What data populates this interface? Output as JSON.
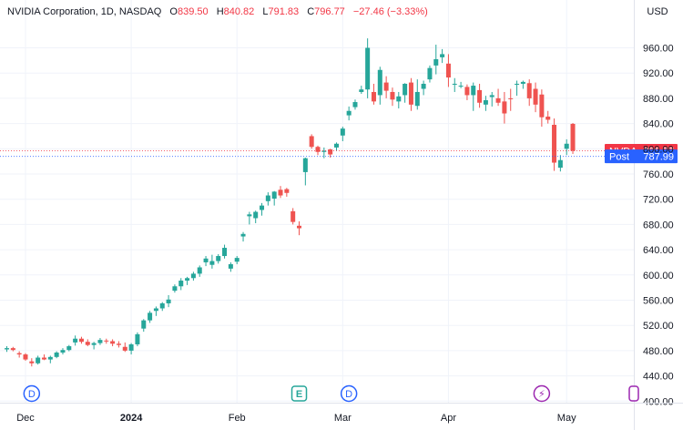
{
  "header": {
    "symbol": "NVIDIA Corporation, 1D, NASDAQ",
    "open_label": "O",
    "open": "839.50",
    "high_label": "H",
    "high": "840.82",
    "low_label": "L",
    "low": "791.83",
    "close_label": "C",
    "close": "796.77",
    "change": "−27.46 (−3.33%)"
  },
  "currency": "USD",
  "price_tags": [
    {
      "label": "NVDA",
      "value": "796.77",
      "price": 796.77,
      "color": "#f23645"
    },
    {
      "label": "Post",
      "value": "787.99",
      "price": 787.99,
      "color": "#2962ff"
    }
  ],
  "event_markers": [
    {
      "text": "D",
      "type": "dividend",
      "index": 4
    },
    {
      "text": "E",
      "type": "earnings",
      "index": 47
    },
    {
      "text": "D",
      "type": "dividend",
      "index": 55
    },
    {
      "text": "⚡",
      "type": "split",
      "index": 86
    }
  ],
  "colors": {
    "up": "#26a69a",
    "down": "#ef5350",
    "grid": "#f0f3fa",
    "axis_text": "#131722"
  },
  "chart_data": {
    "type": "candlestick",
    "title": "NVIDIA Corporation, 1D, NASDAQ",
    "ylim": [
      400,
      980
    ],
    "y_ticks": [
      400,
      440,
      480,
      520,
      560,
      600,
      640,
      680,
      720,
      760,
      800,
      840,
      880,
      920,
      960
    ],
    "y_tick_labels": [
      "400.00",
      "440.00",
      "480.00",
      "520.00",
      "560.00",
      "600.00",
      "640.00",
      "680.00",
      "720.00",
      "760.00",
      "800.00",
      "840.00",
      "880.00",
      "920.00",
      "960.00"
    ],
    "x_labels": [
      {
        "label": "Dec",
        "index": 3
      },
      {
        "label": "2024",
        "index": 20
      },
      {
        "label": "Feb",
        "index": 37
      },
      {
        "label": "Mar",
        "index": 54
      },
      {
        "label": "Apr",
        "index": 71
      },
      {
        "label": "May",
        "index": 90
      }
    ],
    "ohlc": [
      [
        482,
        487,
        478,
        484
      ],
      [
        484,
        486,
        479,
        481
      ],
      [
        476,
        479,
        469,
        474
      ],
      [
        474,
        476,
        464,
        466
      ],
      [
        463,
        468,
        455,
        460
      ],
      [
        460,
        472,
        458,
        469
      ],
      [
        469,
        474,
        465,
        466
      ],
      [
        466,
        472,
        460,
        470
      ],
      [
        470,
        479,
        468,
        477
      ],
      [
        477,
        484,
        474,
        481
      ],
      [
        481,
        489,
        479,
        487
      ],
      [
        493,
        504,
        488,
        499
      ],
      [
        499,
        502,
        491,
        494
      ],
      [
        494,
        498,
        487,
        489
      ],
      [
        489,
        494,
        482,
        492
      ],
      [
        492,
        500,
        489,
        497
      ],
      [
        496,
        499,
        491,
        495
      ],
      [
        495,
        498,
        487,
        491
      ],
      [
        491,
        495,
        485,
        489
      ],
      [
        486,
        493,
        478,
        480
      ],
      [
        480,
        492,
        474,
        490
      ],
      [
        490,
        509,
        487,
        506
      ],
      [
        515,
        530,
        510,
        528
      ],
      [
        528,
        543,
        524,
        540
      ],
      [
        543,
        550,
        535,
        547
      ],
      [
        547,
        557,
        543,
        555
      ],
      [
        555,
        568,
        549,
        561
      ],
      [
        575,
        585,
        572,
        582
      ],
      [
        582,
        595,
        576,
        591
      ],
      [
        591,
        597,
        584,
        595
      ],
      [
        595,
        605,
        591,
        602
      ],
      [
        602,
        615,
        597,
        612
      ],
      [
        620,
        630,
        614,
        626
      ],
      [
        616,
        632,
        610,
        622
      ],
      [
        622,
        633,
        618,
        630
      ],
      [
        630,
        648,
        626,
        643
      ],
      [
        610,
        620,
        605,
        617
      ],
      [
        621,
        630,
        617,
        627
      ],
      [
        661,
        668,
        653,
        665
      ],
      [
        693,
        700,
        680,
        696
      ],
      [
        690,
        702,
        682,
        700
      ],
      [
        703,
        714,
        694,
        710
      ],
      [
        717,
        731,
        710,
        726
      ],
      [
        721,
        733,
        710,
        732
      ],
      [
        735,
        741,
        722,
        726
      ],
      [
        736,
        738,
        724,
        730
      ],
      [
        701,
        706,
        680,
        684
      ],
      [
        678,
        685,
        663,
        674
      ],
      [
        763,
        786,
        742,
        785
      ],
      [
        820,
        823,
        800,
        803
      ],
      [
        803,
        805,
        790,
        795
      ],
      [
        795,
        802,
        785,
        797
      ],
      [
        799,
        800,
        786,
        791
      ],
      [
        802,
        810,
        797,
        808
      ],
      [
        821,
        835,
        812,
        832
      ],
      [
        853,
        867,
        845,
        860
      ],
      [
        866,
        878,
        862,
        874
      ],
      [
        890,
        900,
        887,
        894
      ],
      [
        894,
        975,
        880,
        960
      ],
      [
        890,
        903,
        870,
        875
      ],
      [
        885,
        930,
        870,
        925
      ],
      [
        905,
        915,
        880,
        892
      ],
      [
        890,
        897,
        868,
        878
      ],
      [
        875,
        890,
        864,
        883
      ],
      [
        885,
        904,
        873,
        903
      ],
      [
        905,
        912,
        860,
        870
      ],
      [
        868,
        910,
        862,
        890
      ],
      [
        895,
        908,
        885,
        903
      ],
      [
        910,
        932,
        905,
        928
      ],
      [
        932,
        965,
        918,
        942
      ],
      [
        945,
        958,
        936,
        950
      ],
      [
        935,
        950,
        898,
        913
      ],
      [
        902,
        912,
        890,
        903
      ],
      [
        900,
        906,
        896,
        900
      ],
      [
        898,
        902,
        877,
        885
      ],
      [
        885,
        905,
        860,
        900
      ],
      [
        893,
        903,
        865,
        873
      ],
      [
        870,
        884,
        860,
        877
      ],
      [
        882,
        890,
        867,
        885
      ],
      [
        880,
        895,
        868,
        873
      ],
      [
        875,
        890,
        840,
        856
      ],
      [
        880,
        895,
        860,
        879
      ],
      [
        902,
        908,
        884,
        903
      ],
      [
        903,
        908,
        895,
        906
      ],
      [
        904,
        910,
        868,
        880
      ],
      [
        895,
        905,
        858,
        870
      ],
      [
        886,
        894,
        835,
        850
      ],
      [
        851,
        860,
        840,
        846
      ],
      [
        838,
        848,
        765,
        778
      ],
      [
        770,
        790,
        764,
        782
      ],
      [
        800,
        815,
        790,
        808
      ],
      [
        839.5,
        840.82,
        791.83,
        796.77
      ]
    ]
  }
}
